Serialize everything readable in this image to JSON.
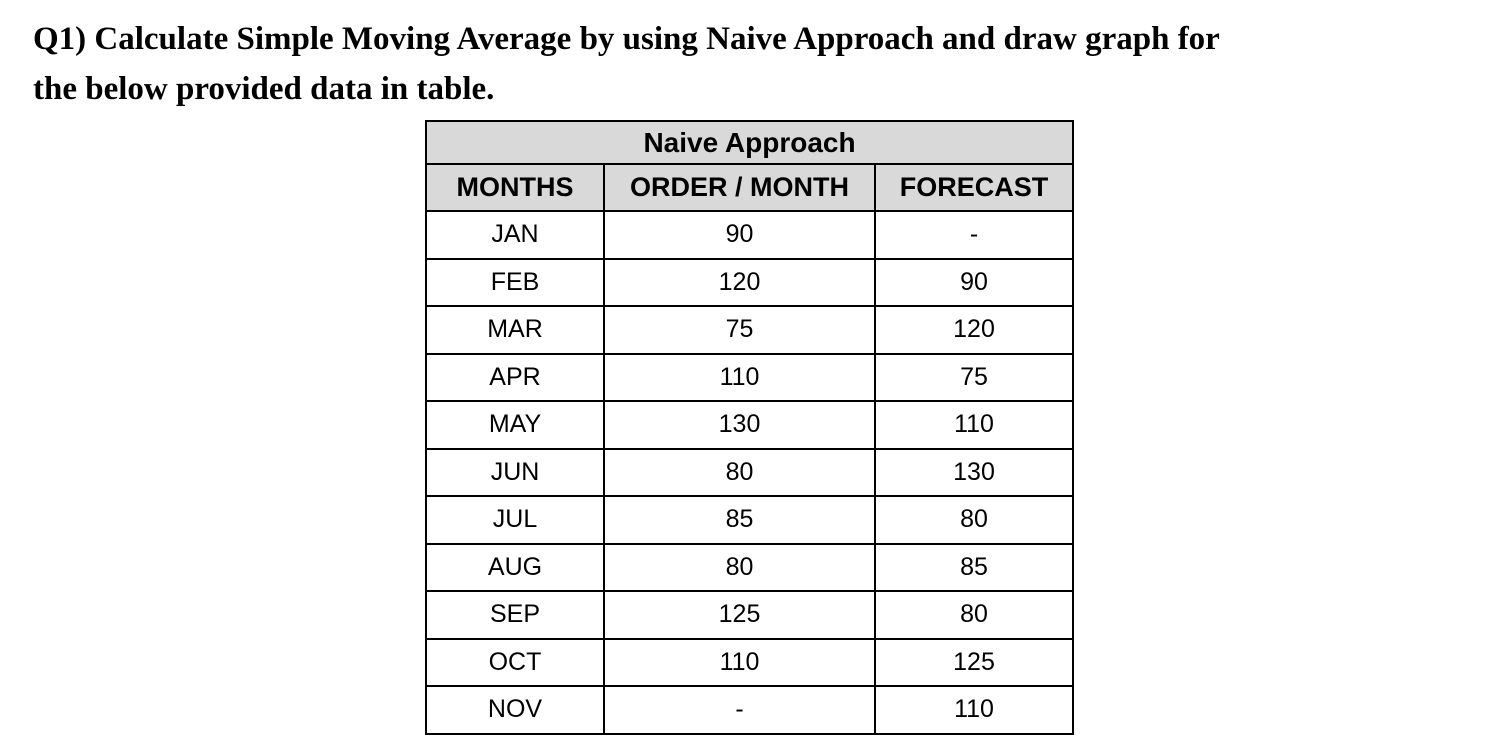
{
  "question": {
    "lines": [
      "Q1) Calculate Simple Moving Average by using Naive Approach and draw graph for",
      "the below provided data in table."
    ]
  },
  "table": {
    "title": "Naive Approach",
    "columns": [
      "MONTHS",
      "ORDER / MONTH",
      "FORECAST"
    ],
    "rows": [
      {
        "month": "JAN",
        "order": "90",
        "forecast": "-"
      },
      {
        "month": "FEB",
        "order": "120",
        "forecast": "90"
      },
      {
        "month": "MAR",
        "order": "75",
        "forecast": "120"
      },
      {
        "month": "APR",
        "order": "110",
        "forecast": "75"
      },
      {
        "month": "MAY",
        "order": "130",
        "forecast": "110"
      },
      {
        "month": "JUN",
        "order": "80",
        "forecast": "130"
      },
      {
        "month": "JUL",
        "order": "85",
        "forecast": "80"
      },
      {
        "month": "AUG",
        "order": "80",
        "forecast": "85"
      },
      {
        "month": "SEP",
        "order": "125",
        "forecast": "80"
      },
      {
        "month": "OCT",
        "order": "110",
        "forecast": "125"
      },
      {
        "month": "NOV",
        "order": "-",
        "forecast": "110"
      }
    ],
    "colors": {
      "header_bg": "#d9d9d9",
      "row_bg": "#ffffff",
      "border": "#000000",
      "text": "#000000"
    }
  },
  "chart_data": {
    "type": "table",
    "title": "Naive Approach",
    "categories": [
      "JAN",
      "FEB",
      "MAR",
      "APR",
      "MAY",
      "JUN",
      "JUL",
      "AUG",
      "SEP",
      "OCT",
      "NOV"
    ],
    "series": [
      {
        "name": "ORDER / MONTH",
        "values": [
          90,
          120,
          75,
          110,
          130,
          80,
          85,
          80,
          125,
          110,
          null
        ]
      },
      {
        "name": "FORECAST",
        "values": [
          null,
          90,
          120,
          75,
          110,
          130,
          80,
          85,
          80,
          125,
          110
        ]
      }
    ]
  }
}
